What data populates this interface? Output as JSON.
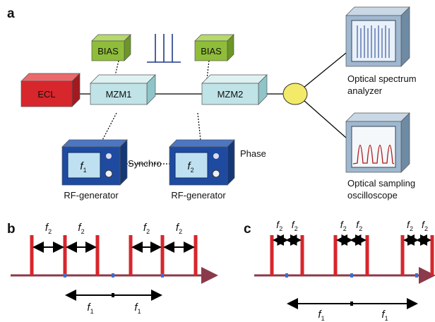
{
  "panel_labels": [
    "a",
    "b",
    "c"
  ],
  "setup": {
    "bias": [
      "BIAS",
      "BIAS"
    ],
    "laser": "ECL",
    "modulators": [
      "MZM1",
      "MZM2"
    ],
    "generators": [
      {
        "symbol": "f",
        "index": "1",
        "label": "RF-generator"
      },
      {
        "symbol": "f",
        "index": "2",
        "label": "RF-generator"
      }
    ],
    "synchro": "Synchro",
    "phase": "Phase",
    "instruments": [
      [
        "Optical spectrum",
        "analyzer"
      ],
      [
        "Optical sampling",
        "oscilloscope"
      ]
    ]
  },
  "panel_b": {
    "spacing_labels": [
      {
        "symbol": "f",
        "index": "2"
      },
      {
        "symbol": "f",
        "index": "2"
      },
      {
        "symbol": "f",
        "index": "2"
      },
      {
        "symbol": "f",
        "index": "2"
      }
    ],
    "period_labels": [
      {
        "symbol": "f",
        "index": "1"
      },
      {
        "symbol": "f",
        "index": "1"
      }
    ]
  },
  "panel_c": {
    "spacing_labels": [
      {
        "symbol": "f",
        "index": "2"
      },
      {
        "symbol": "f",
        "index": "2"
      },
      {
        "symbol": "f",
        "index": "2"
      },
      {
        "symbol": "f",
        "index": "2"
      },
      {
        "symbol": "f",
        "index": "2"
      },
      {
        "symbol": "f",
        "index": "2"
      }
    ],
    "period_labels": [
      {
        "symbol": "f",
        "index": "1"
      },
      {
        "symbol": "f",
        "index": "1"
      }
    ]
  }
}
